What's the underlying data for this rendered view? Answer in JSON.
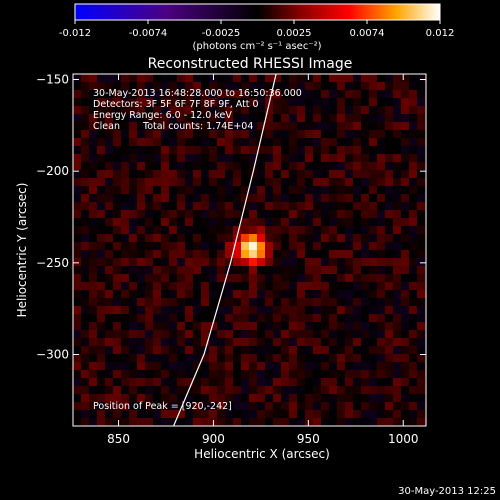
{
  "chart_data": {
    "type": "heatmap",
    "title": "Reconstructed RHESSI Image",
    "xlabel": "Heliocentric X (arcsec)",
    "ylabel": "Heliocentric Y (arcsec)",
    "xlim": [
      826,
      1012
    ],
    "ylim": [
      -339,
      -147
    ],
    "xticks": [
      850,
      900,
      950,
      1000
    ],
    "yticks": [
      -150,
      -200,
      -250,
      -300
    ],
    "colorbar": {
      "label": "(photons cm⁻² s⁻¹ asec⁻²)",
      "range": [
        -0.012,
        0.012
      ],
      "ticks": [
        "-0.012",
        "-0.0074",
        "-0.0025",
        "0.0025",
        "0.0074",
        "0.012"
      ]
    },
    "annotations": [
      "30-May-2013 16:48:28.000 to 16:50:36.000",
      "Detectors: 3F 5F 6F 7F 8F 9F, Att 0",
      "Energy Range: 6.0 - 12.0 keV",
      "Clean",
      "Total counts: 1.74E+04"
    ],
    "peak": {
      "label": "Position of Peak = [920,-242]",
      "x": 920,
      "y": -242
    },
    "source": {
      "x": 920,
      "y": -242,
      "fwhm_arcsec": 14,
      "peak_value": 0.012
    },
    "limb_curve": [
      [
        879,
        -339
      ],
      [
        895,
        -300
      ],
      [
        909,
        -250
      ],
      [
        921,
        -200
      ],
      [
        933,
        -147
      ]
    ]
  },
  "footer": {
    "timestamp": "30-May-2013 12:25"
  }
}
